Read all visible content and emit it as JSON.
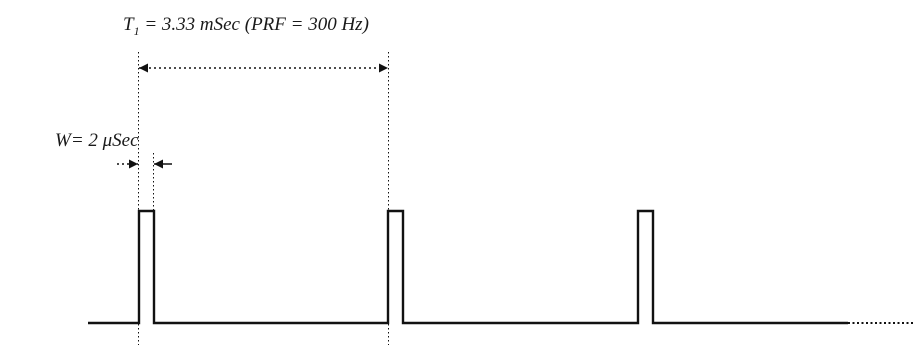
{
  "period_label": {
    "symbol": "T",
    "subscript": "1",
    "value_text": " = 3.33 mSec (PRF = 300 Hz)"
  },
  "width_label": "W= 2 μSec",
  "colors": {
    "line": "#111111",
    "text": "#1a1a1a"
  }
}
